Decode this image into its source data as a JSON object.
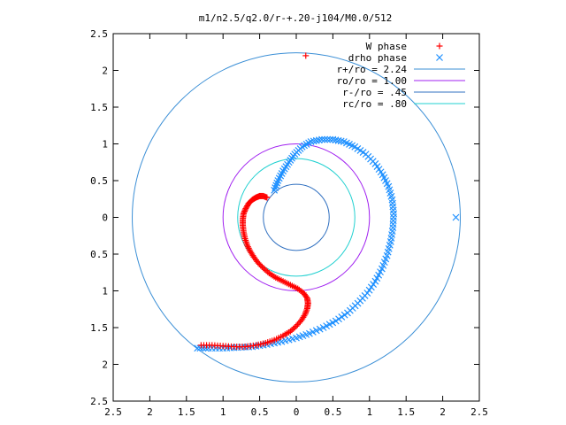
{
  "chart_data": {
    "type": "scatter",
    "title": "m1/n2.5/q2.0/r-+.20-j104/M0.0/512",
    "xlabel": "",
    "ylabel": "",
    "xlim": [
      -2.5,
      2.5
    ],
    "ylim": [
      -2.5,
      2.5
    ],
    "xticks": [
      -2.5,
      -2,
      -1.5,
      -1,
      -0.5,
      0,
      0.5,
      1,
      1.5,
      2,
      2.5
    ],
    "yticks": [
      -2.5,
      -2,
      -1.5,
      -1,
      -0.5,
      0,
      0.5,
      1,
      1.5,
      2,
      2.5
    ],
    "xtick_labels": [
      "2.5",
      "2",
      "1.5",
      "1",
      "0.5",
      "0",
      "0.5",
      "1",
      "1.5",
      "2",
      "2.5"
    ],
    "ytick_labels": [
      "2.5",
      "2",
      "1.5",
      "1",
      "0.5",
      "0",
      "0.5",
      "1",
      "1.5",
      "2",
      "2.5"
    ],
    "grid": false,
    "legend_position": "top-right",
    "series": [
      {
        "name": "W phase",
        "marker": "plus",
        "color": "#ff0000",
        "points": [
          [
            -0.4,
            0.27
          ],
          [
            -0.45,
            0.29
          ],
          [
            -0.5,
            0.29
          ],
          [
            -0.55,
            0.27
          ],
          [
            -0.6,
            0.24
          ],
          [
            -0.65,
            0.19
          ],
          [
            -0.69,
            0.12
          ],
          [
            -0.72,
            0.05
          ],
          [
            -0.73,
            -0.03
          ],
          [
            -0.73,
            -0.11
          ],
          [
            -0.72,
            -0.2
          ],
          [
            -0.7,
            -0.29
          ],
          [
            -0.67,
            -0.38
          ],
          [
            -0.63,
            -0.46
          ],
          [
            -0.58,
            -0.54
          ],
          [
            -0.52,
            -0.62
          ],
          [
            -0.45,
            -0.69
          ],
          [
            -0.37,
            -0.76
          ],
          [
            -0.28,
            -0.82
          ],
          [
            -0.18,
            -0.87
          ],
          [
            -0.08,
            -0.92
          ],
          [
            0.02,
            -0.97
          ],
          [
            0.1,
            -1.03
          ],
          [
            0.15,
            -1.1
          ],
          [
            0.16,
            -1.17
          ],
          [
            0.15,
            -1.24
          ],
          [
            0.12,
            -1.32
          ],
          [
            0.07,
            -1.4
          ],
          [
            0.0,
            -1.48
          ],
          [
            -0.08,
            -1.55
          ],
          [
            -0.18,
            -1.61
          ],
          [
            -0.3,
            -1.67
          ],
          [
            -0.42,
            -1.71
          ],
          [
            -0.55,
            -1.74
          ],
          [
            -0.7,
            -1.76
          ],
          [
            -0.85,
            -1.76
          ],
          [
            -1.0,
            -1.75
          ],
          [
            -1.15,
            -1.74
          ],
          [
            -1.3,
            -1.74
          ],
          [
            0.13,
            2.2
          ]
        ]
      },
      {
        "name": "drho phase",
        "marker": "cross",
        "color": "#1e90ff",
        "points": [
          [
            -0.3,
            0.37
          ],
          [
            -0.25,
            0.5
          ],
          [
            -0.18,
            0.63
          ],
          [
            -0.1,
            0.75
          ],
          [
            -0.02,
            0.86
          ],
          [
            0.08,
            0.96
          ],
          [
            0.2,
            1.03
          ],
          [
            0.35,
            1.06
          ],
          [
            0.5,
            1.06
          ],
          [
            0.65,
            1.03
          ],
          [
            0.8,
            0.96
          ],
          [
            0.95,
            0.86
          ],
          [
            1.08,
            0.73
          ],
          [
            1.18,
            0.58
          ],
          [
            1.26,
            0.42
          ],
          [
            1.31,
            0.24
          ],
          [
            1.33,
            0.05
          ],
          [
            1.32,
            -0.14
          ],
          [
            1.29,
            -0.33
          ],
          [
            1.24,
            -0.52
          ],
          [
            1.17,
            -0.7
          ],
          [
            1.08,
            -0.87
          ],
          [
            0.97,
            -1.03
          ],
          [
            0.84,
            -1.17
          ],
          [
            0.7,
            -1.3
          ],
          [
            0.54,
            -1.41
          ],
          [
            0.37,
            -1.5
          ],
          [
            0.18,
            -1.58
          ],
          [
            0.0,
            -1.64
          ],
          [
            -0.2,
            -1.69
          ],
          [
            -0.4,
            -1.73
          ],
          [
            -0.6,
            -1.76
          ],
          [
            -0.8,
            -1.77
          ],
          [
            -1.0,
            -1.78
          ],
          [
            -1.2,
            -1.78
          ],
          [
            -1.35,
            -1.78
          ],
          [
            2.18,
            0.0
          ]
        ]
      },
      {
        "name": "r+/ro = 2.24",
        "type": "circle",
        "radius": 2.24,
        "color": "#3b8fd6"
      },
      {
        "name": "ro/ro = 1.00",
        "type": "circle",
        "radius": 1.0,
        "color": "#a020f0"
      },
      {
        "name": "r-/ro = .45",
        "type": "circle",
        "radius": 0.45,
        "color": "#3070c0"
      },
      {
        "name": "rc/ro = .80",
        "type": "circle",
        "radius": 0.8,
        "color": "#20d0d0"
      }
    ]
  }
}
